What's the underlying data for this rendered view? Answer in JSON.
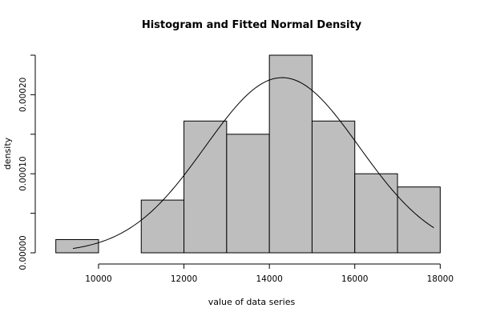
{
  "chart_data": {
    "type": "bar",
    "title": "Histogram and Fitted Normal Density",
    "xlabel": "value of data series",
    "ylabel": "density",
    "bins": [
      {
        "from": 9000,
        "to": 10000,
        "density": 1.67e-05
      },
      {
        "from": 10000,
        "to": 11000,
        "density": 0.0
      },
      {
        "from": 11000,
        "to": 12000,
        "density": 6.67e-05
      },
      {
        "from": 12000,
        "to": 13000,
        "density": 0.0001667
      },
      {
        "from": 13000,
        "to": 14000,
        "density": 0.00015
      },
      {
        "from": 14000,
        "to": 15000,
        "density": 0.00025
      },
      {
        "from": 15000,
        "to": 16000,
        "density": 0.0001667
      },
      {
        "from": 16000,
        "to": 17000,
        "density": 0.0001
      },
      {
        "from": 17000,
        "to": 18000,
        "density": 8.33e-05
      }
    ],
    "fitted_normal": {
      "mean": 14300,
      "sd": 1800,
      "x_from": 9400,
      "x_to": 17850
    },
    "xlim": [
      8800,
      18200
    ],
    "ylim": [
      0,
      0.00025
    ],
    "x_ticks": [
      10000,
      12000,
      14000,
      16000,
      18000
    ],
    "x_tick_labels": [
      "10000",
      "12000",
      "14000",
      "16000",
      "18000"
    ],
    "y_ticks": [
      0,
      5e-05,
      0.0001,
      0.00015,
      0.0002,
      0.00025
    ],
    "y_tick_labels": [
      "0.00000",
      "",
      "0.00010",
      "",
      "0.00020",
      ""
    ],
    "bar_color": "#bebebe",
    "grid": false
  }
}
